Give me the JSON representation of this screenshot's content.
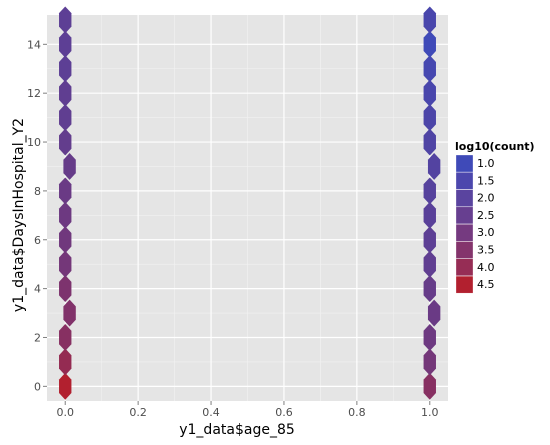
{
  "chart_data": {
    "type": "hexbin",
    "xlabel": "y1_data$age_85",
    "ylabel": "y1_data$DaysInHospital_Y2",
    "xlim": [
      -0.05,
      1.05
    ],
    "ylim": [
      -0.6,
      15.2
    ],
    "x_ticks": [
      "0.0",
      "0.2",
      "0.4",
      "0.6",
      "0.8",
      "1.0"
    ],
    "x_tick_values": [
      0,
      0.2,
      0.4,
      0.6,
      0.8,
      1.0
    ],
    "y_ticks": [
      "0",
      "2",
      "4",
      "6",
      "8",
      "10",
      "12",
      "14"
    ],
    "y_tick_values": [
      0,
      2,
      4,
      6,
      8,
      10,
      12,
      14
    ],
    "legend": {
      "title": "log10(count)",
      "labels": [
        "1.0",
        "1.5",
        "2.0",
        "2.5",
        "3.0",
        "3.5",
        "4.0",
        "4.5"
      ],
      "colors": [
        "#3f4ab8",
        "#4c47ad",
        "#5a449f",
        "#673f90",
        "#753a80",
        "#84346c",
        "#962d55",
        "#b2202f"
      ]
    },
    "low_color": "#3f4ab8",
    "high_color": "#b2202f",
    "grid": true,
    "legend_position": "right",
    "bins": [
      {
        "x": 0,
        "y": 0,
        "log10_count": 4.5
      },
      {
        "x": 0,
        "y": 1,
        "log10_count": 3.6
      },
      {
        "x": 0,
        "y": 2,
        "log10_count": 3.2
      },
      {
        "x": 0,
        "y": 3,
        "log10_count": 3.0
      },
      {
        "x": 0,
        "y": 4,
        "log10_count": 2.9
      },
      {
        "x": 0,
        "y": 5,
        "log10_count": 2.6
      },
      {
        "x": 0,
        "y": 6,
        "log10_count": 2.5
      },
      {
        "x": 0,
        "y": 7,
        "log10_count": 2.4
      },
      {
        "x": 0,
        "y": 8,
        "log10_count": 2.3
      },
      {
        "x": 0,
        "y": 9,
        "log10_count": 2.2
      },
      {
        "x": 0,
        "y": 10,
        "log10_count": 2.1
      },
      {
        "x": 0,
        "y": 11,
        "log10_count": 2.0
      },
      {
        "x": 0,
        "y": 12,
        "log10_count": 2.0
      },
      {
        "x": 0,
        "y": 13,
        "log10_count": 1.9
      },
      {
        "x": 0,
        "y": 14,
        "log10_count": 1.9
      },
      {
        "x": 0,
        "y": 15,
        "log10_count": 1.9
      },
      {
        "x": 1,
        "y": 0,
        "log10_count": 3.2
      },
      {
        "x": 1,
        "y": 1,
        "log10_count": 2.6
      },
      {
        "x": 1,
        "y": 2,
        "log10_count": 2.4
      },
      {
        "x": 1,
        "y": 3,
        "log10_count": 2.3
      },
      {
        "x": 1,
        "y": 4,
        "log10_count": 2.2
      },
      {
        "x": 1,
        "y": 5,
        "log10_count": 2.0
      },
      {
        "x": 1,
        "y": 6,
        "log10_count": 1.9
      },
      {
        "x": 1,
        "y": 7,
        "log10_count": 1.8
      },
      {
        "x": 1,
        "y": 8,
        "log10_count": 1.7
      },
      {
        "x": 1,
        "y": 9,
        "log10_count": 1.6
      },
      {
        "x": 1,
        "y": 10,
        "log10_count": 1.5
      },
      {
        "x": 1,
        "y": 11,
        "log10_count": 1.4
      },
      {
        "x": 1,
        "y": 12,
        "log10_count": 1.3
      },
      {
        "x": 1,
        "y": 13,
        "log10_count": 1.2
      },
      {
        "x": 1,
        "y": 14,
        "log10_count": 1.0
      },
      {
        "x": 1,
        "y": 15,
        "log10_count": 1.3
      }
    ]
  }
}
